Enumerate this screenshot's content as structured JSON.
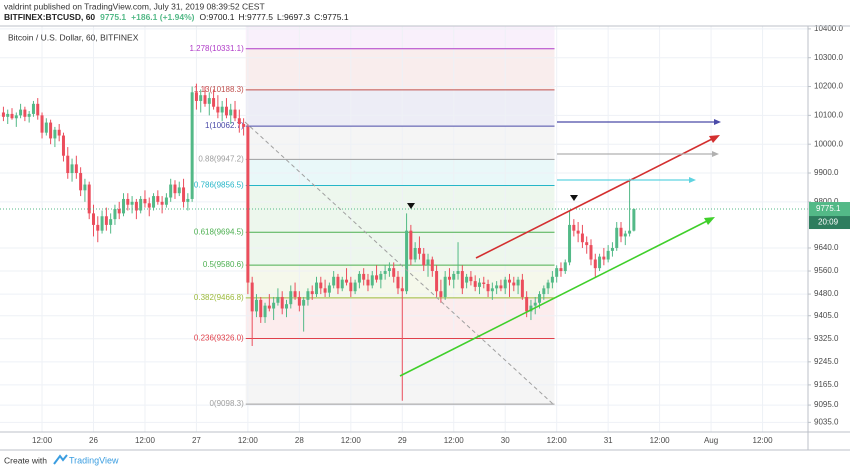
{
  "header": {
    "published": "valdrint published on TradingView.com, July 31, 2019 08:39:52 CEST",
    "symbol": "BITFINEX:BTCUSD, 60",
    "price": "9775.1",
    "change": "+186.1 (+1.94%)",
    "ohlc": [
      "O:9700.1",
      "H:9777.5",
      "L:9697.3",
      "C:9775.1"
    ]
  },
  "chart_data": {
    "type": "candlestick",
    "title": "Bitcoin / U.S. Dollar, 60, BITFINEX",
    "up_color": "#53b987",
    "down_color": "#eb4d5c",
    "grid": true,
    "xlim": [
      2.2,
      190.6
    ],
    "ylim": [
      9001.6,
      10410
    ],
    "xticks": [
      {
        "value": 12,
        "label": "12:00"
      },
      {
        "value": 24,
        "label": "26"
      },
      {
        "value": 36,
        "label": "12:00"
      },
      {
        "value": 48,
        "label": "27"
      },
      {
        "value": 60,
        "label": "12:00"
      },
      {
        "value": 72,
        "label": "28"
      },
      {
        "value": 84,
        "label": "12:00"
      },
      {
        "value": 96,
        "label": "29"
      },
      {
        "value": 108,
        "label": "12:00"
      },
      {
        "value": 120,
        "label": "30"
      },
      {
        "value": 132,
        "label": "12:00"
      },
      {
        "value": 144,
        "label": "31"
      },
      {
        "value": 156,
        "label": "12:00"
      },
      {
        "value": 168,
        "label": "Aug"
      },
      {
        "value": 180,
        "label": "12:00"
      }
    ],
    "yticks": [
      {
        "value": 10400,
        "label": "10400.0"
      },
      {
        "value": 10300,
        "label": "10300.0"
      },
      {
        "value": 10200,
        "label": "10200.0"
      },
      {
        "value": 10100,
        "label": "10100.0"
      },
      {
        "value": 10000,
        "label": "10000.0"
      },
      {
        "value": 9900,
        "label": "9900.0"
      },
      {
        "value": 9800,
        "label": "9800.0"
      },
      {
        "value": 9640,
        "label": "9640.0"
      },
      {
        "value": 9560,
        "label": "9560.0"
      },
      {
        "value": 9480,
        "label": "9480.0"
      },
      {
        "value": 9405,
        "label": "9405.0"
      },
      {
        "value": 9325,
        "label": "9325.0"
      },
      {
        "value": 9245,
        "label": "9245.0"
      },
      {
        "value": 9165,
        "label": "9165.0"
      },
      {
        "value": 9095,
        "label": "9095.0"
      },
      {
        "value": 9035,
        "label": "9035.0"
      }
    ],
    "last_price": 9775.1,
    "countdown": "20:09",
    "fib_levels": [
      {
        "label": "1.278(10331.1)",
        "value": 10331.1,
        "color": "#b03cc8"
      },
      {
        "label": "1.13(10188.3)",
        "value": 10188.3,
        "color": "#c0504d"
      },
      {
        "label": "1(10062.7)",
        "value": 10062.7,
        "color": "#4a4aa8"
      },
      {
        "label": "0.88(9947.2)",
        "value": 9947.2,
        "color": "#9e9e9e"
      },
      {
        "label": "0.786(9856.5)",
        "value": 9856.5,
        "color": "#26b6c8"
      },
      {
        "label": "0.618(9694.5)",
        "value": 9694.5,
        "color": "#4caf50"
      },
      {
        "label": "0.5(9580.6)",
        "value": 9580.6,
        "color": "#4caf50"
      },
      {
        "label": "0.382(9466.8)",
        "value": 9466.8,
        "color": "#9cba3c"
      },
      {
        "label": "0.236(9326.0)",
        "value": 9326.0,
        "color": "#e0404a"
      },
      {
        "label": "0(9098.3)",
        "value": 9098.3,
        "color": "#9e9e9e"
      }
    ],
    "x": [
      3,
      4,
      5,
      6,
      7,
      8,
      9,
      10,
      11,
      12,
      13,
      14,
      15,
      16,
      17,
      18,
      19,
      20,
      21,
      22,
      23,
      24,
      25,
      26,
      27,
      28,
      29,
      30,
      31,
      32,
      33,
      34,
      35,
      36,
      37,
      38,
      39,
      40,
      41,
      42,
      43,
      44,
      45,
      46,
      47,
      48,
      49,
      50,
      51,
      52,
      53,
      54,
      55,
      56,
      57,
      58,
      59,
      60,
      61,
      62,
      63,
      64,
      65,
      66,
      67,
      68,
      69,
      70,
      71,
      72,
      73,
      74,
      75,
      76,
      77,
      78,
      79,
      80,
      81,
      82,
      83,
      84,
      85,
      86,
      87,
      88,
      89,
      90,
      91,
      92,
      93,
      94,
      95,
      96,
      97,
      98,
      99,
      100,
      101,
      102,
      103,
      104,
      105,
      106,
      107,
      108,
      109,
      110,
      111,
      112,
      113,
      114,
      115,
      116,
      117,
      118,
      119,
      120,
      121,
      122,
      123,
      124,
      125,
      126,
      127,
      128,
      129,
      130,
      131,
      132,
      133,
      134,
      135,
      136,
      137,
      138,
      139,
      140,
      141,
      142,
      143,
      144,
      145,
      146,
      147,
      148,
      149,
      150
    ],
    "ohlc": [
      [
        10110,
        10130,
        10080,
        10095
      ],
      [
        10095,
        10120,
        10070,
        10105
      ],
      [
        10105,
        10125,
        10085,
        10090
      ],
      [
        10090,
        10110,
        10060,
        10100
      ],
      [
        10100,
        10140,
        10090,
        10120
      ],
      [
        10120,
        10130,
        10080,
        10095
      ],
      [
        10095,
        10115,
        10075,
        10105
      ],
      [
        10105,
        10150,
        10095,
        10140
      ],
      [
        10140,
        10160,
        10085,
        10100
      ],
      [
        10100,
        10110,
        10020,
        10040
      ],
      [
        10040,
        10090,
        10030,
        10075
      ],
      [
        10075,
        10085,
        10000,
        10020
      ],
      [
        10020,
        10060,
        9990,
        10050
      ],
      [
        10050,
        10070,
        10010,
        10030
      ],
      [
        10030,
        10040,
        9940,
        9960
      ],
      [
        9960,
        9990,
        9880,
        9900
      ],
      [
        9900,
        9950,
        9870,
        9930
      ],
      [
        9930,
        9960,
        9880,
        9900
      ],
      [
        9900,
        9920,
        9820,
        9840
      ],
      [
        9840,
        9880,
        9800,
        9860
      ],
      [
        9860,
        9870,
        9740,
        9760
      ],
      [
        9760,
        9790,
        9680,
        9720
      ],
      [
        9720,
        9750,
        9660,
        9700
      ],
      [
        9700,
        9770,
        9690,
        9750
      ],
      [
        9750,
        9780,
        9700,
        9720
      ],
      [
        9720,
        9760,
        9690,
        9740
      ],
      [
        9740,
        9790,
        9720,
        9775
      ],
      [
        9775,
        9800,
        9740,
        9760
      ],
      [
        9760,
        9830,
        9750,
        9810
      ],
      [
        9810,
        9830,
        9770,
        9790
      ],
      [
        9790,
        9820,
        9760,
        9800
      ],
      [
        9800,
        9810,
        9740,
        9770
      ],
      [
        9770,
        9820,
        9760,
        9810
      ],
      [
        9810,
        9840,
        9780,
        9795
      ],
      [
        9795,
        9815,
        9750,
        9780
      ],
      [
        9780,
        9830,
        9770,
        9820
      ],
      [
        9820,
        9840,
        9790,
        9800
      ],
      [
        9800,
        9820,
        9760,
        9790
      ],
      [
        9790,
        9830,
        9780,
        9815
      ],
      [
        9815,
        9880,
        9800,
        9860
      ],
      [
        9860,
        9875,
        9810,
        9830
      ],
      [
        9830,
        9870,
        9820,
        9850
      ],
      [
        9850,
        9880,
        9780,
        9800
      ],
      [
        9800,
        9830,
        9770,
        9810
      ],
      [
        9810,
        10200,
        9800,
        10180
      ],
      [
        10180,
        10210,
        10120,
        10150
      ],
      [
        10150,
        10190,
        10110,
        10170
      ],
      [
        10170,
        10200,
        10130,
        10140
      ],
      [
        10140,
        10180,
        10100,
        10160
      ],
      [
        10160,
        10190,
        10120,
        10130
      ],
      [
        10130,
        10170,
        10090,
        10110
      ],
      [
        10110,
        10150,
        10080,
        10130
      ],
      [
        10130,
        10160,
        10090,
        10100
      ],
      [
        10100,
        10140,
        10070,
        10120
      ],
      [
        10120,
        10150,
        10080,
        10090
      ],
      [
        10090,
        10120,
        10040,
        10070
      ],
      [
        10070,
        10090,
        10030,
        10060
      ],
      [
        10060,
        10070,
        9480,
        9520
      ],
      [
        9520,
        9540,
        9300,
        9420
      ],
      [
        9420,
        9480,
        9400,
        9460
      ],
      [
        9460,
        9470,
        9380,
        9400
      ],
      [
        9400,
        9450,
        9380,
        9440
      ],
      [
        9440,
        9480,
        9420,
        9430
      ],
      [
        9430,
        9470,
        9390,
        9450
      ],
      [
        9450,
        9500,
        9440,
        9470
      ],
      [
        9470,
        9490,
        9410,
        9430
      ],
      [
        9430,
        9460,
        9400,
        9445
      ],
      [
        9445,
        9510,
        9430,
        9490
      ],
      [
        9490,
        9520,
        9460,
        9470
      ],
      [
        9470,
        9490,
        9420,
        9440
      ],
      [
        9440,
        9470,
        9350,
        9460
      ],
      [
        9460,
        9500,
        9440,
        9490
      ],
      [
        9490,
        9510,
        9460,
        9480
      ],
      [
        9480,
        9540,
        9470,
        9520
      ],
      [
        9520,
        9540,
        9480,
        9500
      ],
      [
        9500,
        9530,
        9470,
        9485
      ],
      [
        9485,
        9520,
        9470,
        9510
      ],
      [
        9510,
        9560,
        9500,
        9540
      ],
      [
        9540,
        9550,
        9480,
        9500
      ],
      [
        9500,
        9540,
        9490,
        9530
      ],
      [
        9530,
        9570,
        9510,
        9520
      ],
      [
        9520,
        9540,
        9470,
        9490
      ],
      [
        9490,
        9530,
        9480,
        9520
      ],
      [
        9520,
        9560,
        9500,
        9550
      ],
      [
        9550,
        9570,
        9510,
        9530
      ],
      [
        9530,
        9550,
        9490,
        9510
      ],
      [
        9510,
        9560,
        9500,
        9545
      ],
      [
        9545,
        9580,
        9520,
        9530
      ],
      [
        9530,
        9560,
        9500,
        9550
      ],
      [
        9550,
        9580,
        9530,
        9560
      ],
      [
        9560,
        9590,
        9540,
        9570
      ],
      [
        9570,
        9590,
        9520,
        9540
      ],
      [
        9540,
        9560,
        9480,
        9500
      ],
      [
        9500,
        9540,
        9110,
        9490
      ],
      [
        9490,
        9760,
        9480,
        9700
      ],
      [
        9700,
        9720,
        9580,
        9600
      ],
      [
        9600,
        9660,
        9590,
        9640
      ],
      [
        9640,
        9680,
        9600,
        9620
      ],
      [
        9620,
        9640,
        9560,
        9580
      ],
      [
        9580,
        9620,
        9540,
        9600
      ],
      [
        9600,
        9610,
        9540,
        9560
      ],
      [
        9560,
        9580,
        9470,
        9490
      ],
      [
        9490,
        9530,
        9450,
        9470
      ],
      [
        9470,
        9560,
        9460,
        9540
      ],
      [
        9540,
        9570,
        9510,
        9530
      ],
      [
        9530,
        9560,
        9500,
        9550
      ],
      [
        9550,
        9660,
        9530,
        9560
      ],
      [
        9560,
        9580,
        9480,
        9500
      ],
      [
        9520,
        9550,
        9500,
        9540
      ],
      [
        9540,
        9560,
        9510,
        9525
      ],
      [
        9525,
        9545,
        9490,
        9505
      ],
      [
        9505,
        9535,
        9480,
        9520
      ],
      [
        9520,
        9540,
        9500,
        9515
      ],
      [
        9515,
        9530,
        9470,
        9490
      ],
      [
        9490,
        9520,
        9460,
        9500
      ],
      [
        9500,
        9525,
        9480,
        9510
      ],
      [
        9510,
        9530,
        9490,
        9500
      ],
      [
        9500,
        9540,
        9480,
        9530
      ],
      [
        9530,
        9550,
        9470,
        9520
      ],
      [
        9520,
        9540,
        9490,
        9510
      ],
      [
        9510,
        9540,
        9480,
        9530
      ],
      [
        9530,
        9550,
        9460,
        9470
      ],
      [
        9470,
        9490,
        9400,
        9420
      ],
      [
        9420,
        9460,
        9390,
        9440
      ],
      [
        9440,
        9470,
        9410,
        9450
      ],
      [
        9450,
        9490,
        9430,
        9480
      ],
      [
        9480,
        9510,
        9460,
        9500
      ],
      [
        9500,
        9530,
        9480,
        9520
      ],
      [
        9520,
        9560,
        9500,
        9540
      ],
      [
        9540,
        9580,
        9520,
        9570
      ],
      [
        9570,
        9590,
        9540,
        9560
      ],
      [
        9560,
        9600,
        9550,
        9590
      ],
      [
        9590,
        9770,
        9580,
        9720
      ],
      [
        9720,
        9740,
        9680,
        9700
      ],
      [
        9700,
        9730,
        9660,
        9690
      ],
      [
        9690,
        9720,
        9640,
        9660
      ],
      [
        9660,
        9680,
        9620,
        9650
      ],
      [
        9650,
        9670,
        9580,
        9600
      ],
      [
        9600,
        9620,
        9540,
        9570
      ],
      [
        9570,
        9620,
        9560,
        9610
      ],
      [
        9610,
        9640,
        9580,
        9600
      ],
      [
        9600,
        9650,
        9590,
        9630
      ],
      [
        9630,
        9660,
        9610,
        9640
      ],
      [
        9640,
        9730,
        9630,
        9710
      ],
      [
        9710,
        9730,
        9660,
        9680
      ],
      [
        9680,
        9700,
        9650,
        9690
      ],
      [
        9690,
        9880,
        9680,
        9700
      ],
      [
        9700.1,
        9777.5,
        9697.3,
        9775.1
      ]
    ]
  },
  "footer": {
    "prefix": "Create with",
    "brand": "TradingView"
  }
}
